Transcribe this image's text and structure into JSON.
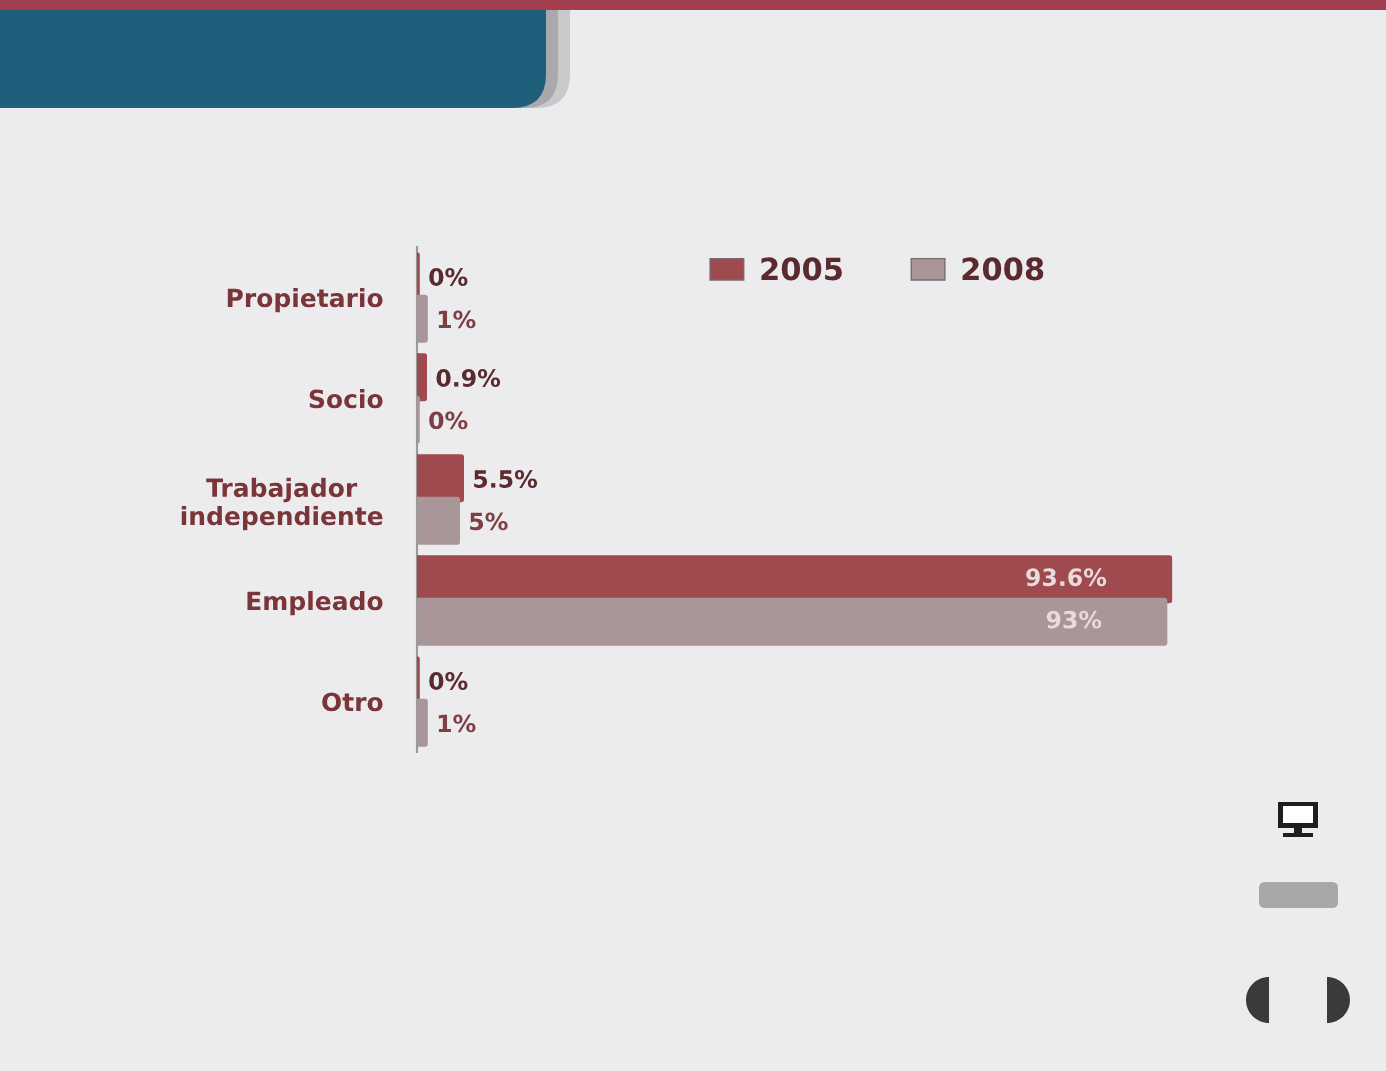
{
  "chart_data": {
    "type": "bar",
    "orientation": "horizontal",
    "categories": [
      "Propietario",
      "Socio",
      "Trabajador\nindependiente",
      "Empleado",
      "Otro"
    ],
    "series": [
      {
        "name": "2005",
        "color": "#9e4a4e",
        "values": [
          0,
          0.9,
          5.5,
          93.6,
          0
        ],
        "value_labels": [
          "0%",
          "0.9%",
          "5.5%",
          "93.6%",
          "0%"
        ]
      },
      {
        "name": "2008",
        "color": "#a99698",
        "values": [
          1,
          0,
          5,
          93,
          1
        ],
        "value_labels": [
          "1%",
          "0%",
          "5%",
          "93%",
          "1%"
        ]
      }
    ],
    "tick_labels": "y",
    "legend": "top right",
    "grid": false
  }
}
